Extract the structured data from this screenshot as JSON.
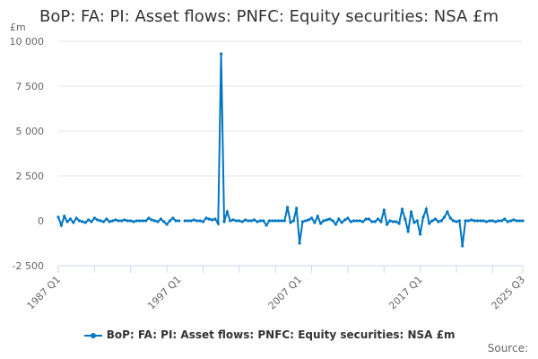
{
  "chart_data": {
    "type": "line",
    "title": "BoP: FA: PI: Asset flows: PNFC: Equity securities: NSA £m",
    "ylabel": "£m",
    "xlabel": "",
    "ylim": [
      -2500,
      10000
    ],
    "yticks": [
      -2500,
      0,
      2500,
      5000,
      7500,
      10000
    ],
    "ytick_labels": [
      "-2 500",
      "0",
      "2 500",
      "5 000",
      "7 500",
      "10 000"
    ],
    "xtick_labels": [
      {
        "label": "1987 Q1",
        "index": 0
      },
      {
        "label": "1997 Q1",
        "index": 40
      },
      {
        "label": "2007 Q1",
        "index": 80
      },
      {
        "label": "2017 Q1",
        "index": 120
      },
      {
        "label": "2025 Q3",
        "index": 154
      }
    ],
    "start": "1987 Q1",
    "end": "2025 Q3",
    "frequency": "quarterly",
    "grid": true,
    "legend_position": "bottom",
    "color": "#0075c2",
    "series": [
      {
        "name": "BoP: FA: PI: Asset flows: PNFC: Equity securities: NSA £m",
        "values": [
          200,
          -250,
          250,
          -50,
          100,
          -100,
          150,
          0,
          -50,
          -100,
          50,
          -50,
          150,
          50,
          0,
          -50,
          100,
          -50,
          0,
          50,
          0,
          0,
          50,
          0,
          0,
          -50,
          0,
          0,
          0,
          0,
          150,
          50,
          0,
          -50,
          100,
          -50,
          -200,
          0,
          150,
          0,
          0,
          null,
          0,
          0,
          0,
          50,
          0,
          0,
          -50,
          150,
          100,
          50,
          100,
          -150,
          9300,
          -50,
          500,
          0,
          50,
          0,
          0,
          -50,
          50,
          0,
          0,
          50,
          -50,
          0,
          0,
          -250,
          0,
          0,
          0,
          0,
          0,
          0,
          750,
          -100,
          0,
          700,
          -1250,
          -50,
          0,
          50,
          150,
          -100,
          250,
          -150,
          0,
          50,
          100,
          0,
          -200,
          100,
          -100,
          50,
          150,
          -50,
          0,
          0,
          0,
          -50,
          100,
          100,
          -50,
          -50,
          100,
          -50,
          600,
          -200,
          0,
          -50,
          -50,
          -150,
          650,
          100,
          -600,
          500,
          -100,
          0,
          -750,
          200,
          650,
          -150,
          0,
          100,
          -50,
          0,
          200,
          500,
          150,
          0,
          -50,
          0,
          -1400,
          0,
          0,
          50,
          0,
          0,
          0,
          0,
          -50,
          0,
          0,
          -50,
          0,
          0,
          100,
          -50,
          0,
          50,
          0,
          0,
          0
        ]
      }
    ]
  },
  "source_label": "Source:"
}
